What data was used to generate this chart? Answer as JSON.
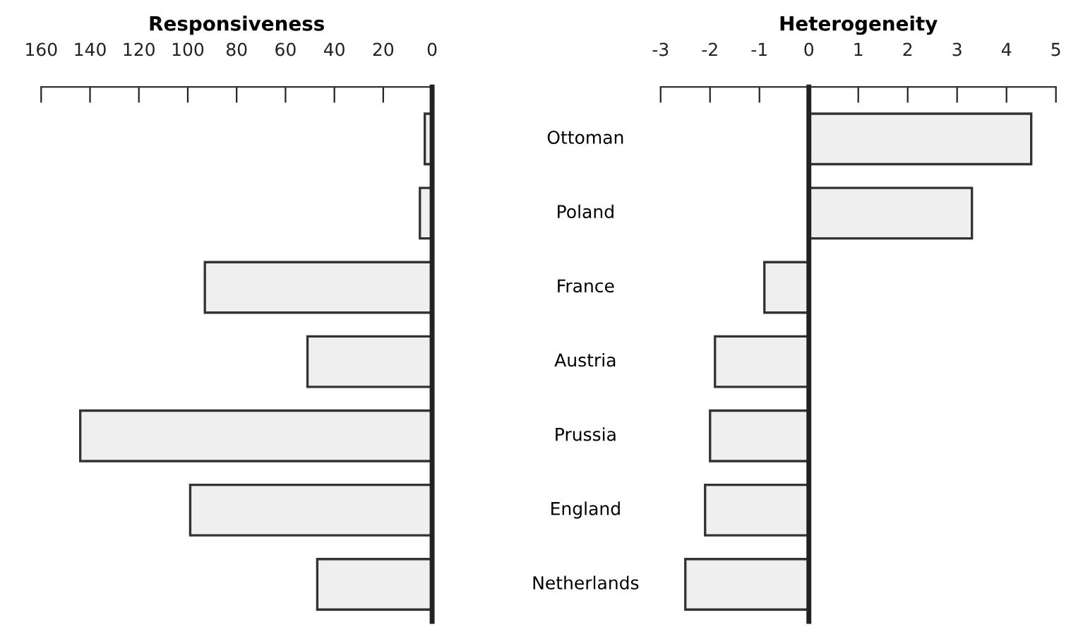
{
  "chart_data": [
    {
      "type": "bar",
      "orientation": "horizontal",
      "title": "Responsiveness",
      "categories": [
        null,
        null,
        null,
        null,
        null,
        null,
        null
      ],
      "values": [
        3,
        5,
        93,
        51,
        144,
        99,
        47
      ],
      "color": "#efefef",
      "xlim": [
        160,
        0
      ],
      "xticks": [
        160,
        140,
        120,
        100,
        80,
        60,
        40,
        20,
        0
      ],
      "ref_lines": [
        {
          "axis": "x",
          "value": 0,
          "color": "#222222"
        }
      ],
      "tick_labels": "x",
      "grid": false,
      "legend": false
    },
    {
      "type": "bar",
      "orientation": "horizontal",
      "title": "Heterogeneity",
      "categories": [
        "Ottoman",
        "Poland",
        "France",
        "Austria",
        "Prussia",
        "England",
        "Netherlands"
      ],
      "values": [
        4.5,
        3.3,
        -0.9,
        -1.9,
        -2.0,
        -2.1,
        -2.5
      ],
      "color": "#efefef",
      "xlim": [
        -3,
        5
      ],
      "xticks": [
        -3,
        -2,
        -1,
        0,
        1,
        2,
        3,
        4,
        5
      ],
      "ref_lines": [
        {
          "axis": "x",
          "value": 0,
          "color": "#222222"
        }
      ],
      "grid": false,
      "legend": false
    }
  ]
}
